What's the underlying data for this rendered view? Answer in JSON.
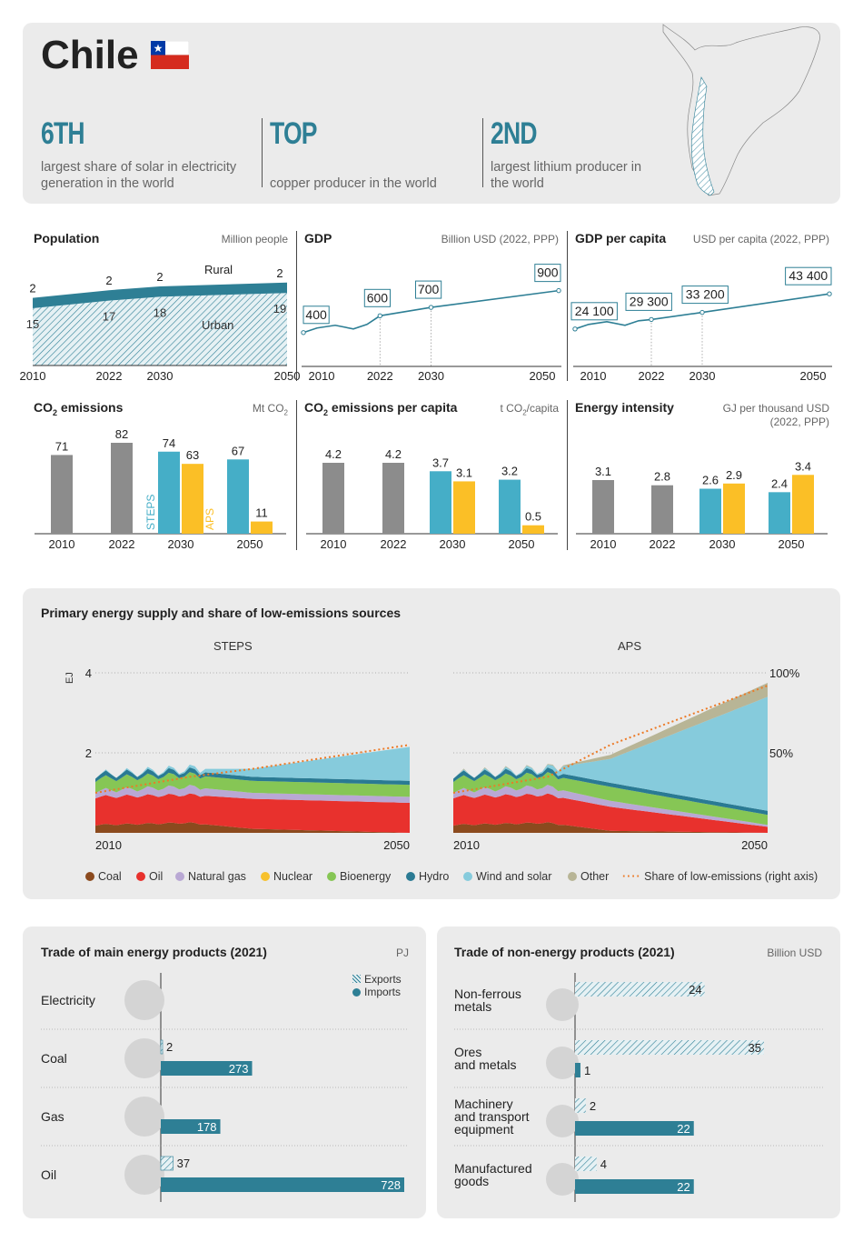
{
  "header": {
    "country": "Chile",
    "facts": [
      {
        "big": "6TH",
        "text": "largest share of solar in electricity generation in the world"
      },
      {
        "big": "TOP",
        "text": "copper producer in the world"
      },
      {
        "big": "2ND",
        "text": "largest lithium producer in the world"
      }
    ]
  },
  "colors": {
    "teal": "#2e7f95",
    "grey": "#8c8c8c",
    "steps": "#45aec7",
    "aps": "#fbbf26",
    "coal": "#8b4a1e",
    "oil": "#e8312d",
    "gas": "#b9a8d4",
    "nuclear": "#f7c12d",
    "bio": "#86c655",
    "hydro": "#2a7a93",
    "wind": "#86cbdc",
    "other": "#b8b596",
    "share": "#ec7a26"
  },
  "population": {
    "title": "Population",
    "unit": "Million people",
    "years": [
      "2010",
      "2022",
      "2030",
      "2050"
    ],
    "rural": [
      2,
      2,
      2,
      2
    ],
    "urban": [
      15,
      17,
      18,
      19
    ],
    "label_rural": "Rural",
    "label_urban": "Urban"
  },
  "gdp": {
    "title": "GDP",
    "unit": "Billion USD (2022, PPP)",
    "years": [
      "2010",
      "2022",
      "2030",
      "2050"
    ],
    "values": [
      400,
      600,
      700,
      900
    ],
    "labels": [
      "400",
      "600",
      "700",
      "900"
    ]
  },
  "gdp_pc": {
    "title": "GDP per capita",
    "unit": "USD per capita (2022, PPP)",
    "years": [
      "2010",
      "2022",
      "2030",
      "2050"
    ],
    "values": [
      24100,
      29300,
      33200,
      43400
    ],
    "labels": [
      "24 100",
      "29 300",
      "33 200",
      "43 400"
    ]
  },
  "co2": {
    "title_main": "CO",
    "title_sub": "2",
    "title_rest": " emissions",
    "unit_main": "Mt CO",
    "unit_sub": "2",
    "years": [
      "2010",
      "2022",
      "2030",
      "2050"
    ],
    "hist": [
      "71",
      "82"
    ],
    "steps": [
      "74",
      "67"
    ],
    "aps": [
      "63",
      "11"
    ],
    "hist_v": [
      71,
      82
    ],
    "steps_v": [
      74,
      67
    ],
    "aps_v": [
      63,
      11
    ],
    "label_steps": "STEPS",
    "label_aps": "APS"
  },
  "co2pc": {
    "title_main": "CO",
    "title_sub": "2",
    "title_rest": " emissions per capita",
    "unit_main": "t CO",
    "unit_sub": "2",
    "unit_rest": "/capita",
    "years": [
      "2010",
      "2022",
      "2030",
      "2050"
    ],
    "hist": [
      "4.2",
      "4.2"
    ],
    "steps": [
      "3.7",
      "3.2"
    ],
    "aps": [
      "3.1",
      "0.5"
    ],
    "hist_v": [
      4.2,
      4.2
    ],
    "steps_v": [
      3.7,
      3.2
    ],
    "aps_v": [
      3.1,
      0.5
    ]
  },
  "intensity": {
    "title": "Energy intensity",
    "unit1": "GJ per thousand USD",
    "unit2": "(2022, PPP)",
    "years": [
      "2010",
      "2022",
      "2030",
      "2050"
    ],
    "hist": [
      "3.1",
      "2.8"
    ],
    "steps": [
      "2.6",
      "2.4"
    ],
    "aps": [
      "2.9",
      "3.4"
    ],
    "hist_v": [
      3.1,
      2.8
    ],
    "steps_v": [
      2.6,
      2.4
    ],
    "aps_v": [
      2.9,
      3.4
    ]
  },
  "supply": {
    "title": "Primary energy supply and share of low-emissions sources",
    "steps_label": "STEPS",
    "aps_label": "APS",
    "y_unit": "EJ",
    "y_ticks": [
      "4",
      "2"
    ],
    "right_ticks": [
      "100%",
      "50%"
    ],
    "x_start": "2010",
    "x_end": "2050",
    "legend": [
      "Coal",
      "Oil",
      "Natural gas",
      "Nuclear",
      "Bioenergy",
      "Hydro",
      "Wind and solar",
      "Other",
      "Share of low-emissions (right axis)"
    ]
  },
  "chart_data": [
    {
      "type": "area",
      "title": "Primary energy supply - STEPS",
      "ylabel": "EJ",
      "ylim": [
        0,
        4
      ],
      "x": [
        2010,
        2022,
        2030,
        2050
      ],
      "series": [
        {
          "name": "Coal",
          "values": [
            0.2,
            0.25,
            0.1,
            0.0
          ]
        },
        {
          "name": "Oil",
          "values": [
            0.7,
            0.7,
            0.75,
            0.75
          ]
        },
        {
          "name": "Natural gas",
          "values": [
            0.15,
            0.2,
            0.15,
            0.15
          ]
        },
        {
          "name": "Bioenergy",
          "values": [
            0.3,
            0.3,
            0.3,
            0.3
          ]
        },
        {
          "name": "Hydro",
          "values": [
            0.1,
            0.1,
            0.1,
            0.1
          ]
        },
        {
          "name": "Wind and solar",
          "values": [
            0.0,
            0.05,
            0.2,
            0.85
          ]
        },
        {
          "name": "Share of low-emissions",
          "values": [
            25,
            35,
            40,
            55
          ],
          "axis": "right",
          "unit": "%"
        }
      ]
    },
    {
      "type": "area",
      "title": "Primary energy supply - APS",
      "ylabel": "EJ",
      "ylim": [
        0,
        4
      ],
      "x": [
        2010,
        2022,
        2030,
        2050
      ],
      "series": [
        {
          "name": "Coal",
          "values": [
            0.2,
            0.25,
            0.05,
            0.0
          ]
        },
        {
          "name": "Oil",
          "values": [
            0.7,
            0.7,
            0.6,
            0.15
          ]
        },
        {
          "name": "Natural gas",
          "values": [
            0.15,
            0.2,
            0.15,
            0.05
          ]
        },
        {
          "name": "Bioenergy",
          "values": [
            0.3,
            0.3,
            0.35,
            0.25
          ]
        },
        {
          "name": "Hydro",
          "values": [
            0.1,
            0.1,
            0.1,
            0.1
          ]
        },
        {
          "name": "Wind and solar",
          "values": [
            0.0,
            0.05,
            0.6,
            2.85
          ]
        },
        {
          "name": "Other",
          "values": [
            0.0,
            0.0,
            0.1,
            0.35
          ]
        },
        {
          "name": "Share of low-emissions",
          "values": [
            25,
            35,
            55,
            92
          ],
          "axis": "right",
          "unit": "%"
        }
      ]
    }
  ],
  "trade_energy": {
    "title": "Trade of main energy products (2021)",
    "unit": "PJ",
    "legend_exports": "Exports",
    "legend_imports": "Imports",
    "rows": [
      {
        "name": "Electricity",
        "exp": null,
        "imp": null,
        "exp_label": "",
        "imp_label": ""
      },
      {
        "name": "Coal",
        "exp": 2,
        "imp": 273,
        "exp_label": "2",
        "imp_label": "273"
      },
      {
        "name": "Gas",
        "exp": null,
        "imp": 178,
        "exp_label": "",
        "imp_label": "178"
      },
      {
        "name": "Oil",
        "exp": 37,
        "imp": 728,
        "exp_label": "37",
        "imp_label": "728"
      }
    ]
  },
  "trade_non": {
    "title": "Trade of non-energy products (2021)",
    "unit": "Billion USD",
    "rows": [
      {
        "l1": "Non-ferrous",
        "l2": "metals",
        "l3": "",
        "exp": 24,
        "imp": null,
        "exp_label": "24",
        "imp_label": ""
      },
      {
        "l1": "Ores",
        "l2": "and metals",
        "l3": "",
        "exp": 35,
        "imp": 1,
        "exp_label": "35",
        "imp_label": "1"
      },
      {
        "l1": "Machinery",
        "l2": "and transport",
        "l3": "equipment",
        "exp": 2,
        "imp": 22,
        "exp_label": "2",
        "imp_label": "22"
      },
      {
        "l1": "Manufactured",
        "l2": "goods",
        "l3": "",
        "exp": 4,
        "imp": 22,
        "exp_label": "4",
        "imp_label": "22"
      }
    ]
  }
}
